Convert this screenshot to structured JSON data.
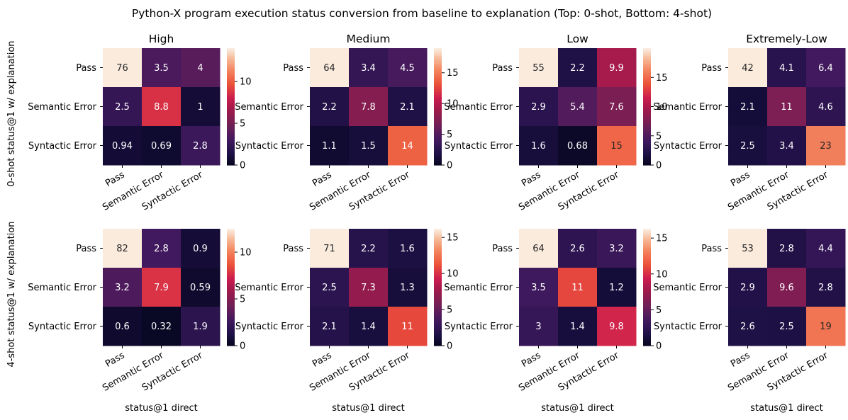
{
  "title": "Python-X program execution status conversion from baseline to explanation (Top: 0-shot, Bottom: 4-shot)",
  "chart_data": {
    "type": "heatmap",
    "colormap": "rocket",
    "categories": [
      "Pass",
      "Semantic Error",
      "Syntactic Error"
    ],
    "xlabel": "status@1 direct",
    "row_labels": [
      "0-shot status@1 w/ explanation",
      "4-shot status@1 w/ explanation"
    ],
    "panels": [
      {
        "title": "High",
        "row": 0,
        "values": [
          [
            76,
            3.5,
            4
          ],
          [
            2.5,
            8.8,
            1
          ],
          [
            0.94,
            0.69,
            2.8
          ]
        ],
        "labels": [
          [
            "76",
            "3.5",
            "4"
          ],
          [
            "2.5",
            "8.8",
            "1"
          ],
          [
            "0.94",
            "0.69",
            "2.8"
          ]
        ],
        "vmin": 0,
        "vmax": 14,
        "ticks": [
          0,
          5,
          10
        ]
      },
      {
        "title": "Medium",
        "row": 0,
        "values": [
          [
            64,
            3.4,
            4.5
          ],
          [
            2.2,
            7.8,
            2.1
          ],
          [
            1.1,
            1.5,
            14
          ]
        ],
        "labels": [
          [
            "64",
            "3.4",
            "4.5"
          ],
          [
            "2.2",
            "7.8",
            "2.1"
          ],
          [
            "1.1",
            "1.5",
            "14"
          ]
        ],
        "vmin": 0,
        "vmax": 19,
        "ticks": [
          0,
          5,
          10,
          15
        ]
      },
      {
        "title": "Low",
        "row": 0,
        "values": [
          [
            55,
            2.2,
            9.9
          ],
          [
            2.9,
            5.4,
            7.6
          ],
          [
            1.6,
            0.68,
            15
          ]
        ],
        "labels": [
          [
            "55",
            "2.2",
            "9.9"
          ],
          [
            "2.9",
            "5.4",
            "7.6"
          ],
          [
            "1.6",
            "0.68",
            "15"
          ]
        ],
        "vmin": 0,
        "vmax": 20,
        "ticks": [
          0,
          5,
          10,
          15
        ]
      },
      {
        "title": "Extremely-Low",
        "row": 0,
        "values": [
          [
            42,
            4.1,
            6.4
          ],
          [
            2.1,
            11,
            4.6
          ],
          [
            2.5,
            3.4,
            23
          ]
        ],
        "labels": [
          [
            "42",
            "4.1",
            "6.4"
          ],
          [
            "2.1",
            "11",
            "4.6"
          ],
          [
            "2.5",
            "3.4",
            "23"
          ]
        ],
        "vmin": 0,
        "vmax": 28.5,
        "ticks": [
          0,
          10,
          20
        ]
      },
      {
        "title": "",
        "row": 1,
        "values": [
          [
            82,
            2.8,
            0.9
          ],
          [
            3.2,
            7.9,
            0.59
          ],
          [
            0.6,
            0.32,
            1.9
          ]
        ],
        "labels": [
          [
            "82",
            "2.8",
            "0.9"
          ],
          [
            "3.2",
            "7.9",
            "0.59"
          ],
          [
            "0.6",
            "0.32",
            "1.9"
          ]
        ],
        "vmin": 0,
        "vmax": 12.5,
        "ticks": [
          0,
          5,
          10
        ]
      },
      {
        "title": "",
        "row": 1,
        "values": [
          [
            71,
            2.2,
            1.6
          ],
          [
            2.5,
            7.3,
            1.3
          ],
          [
            2.1,
            1.4,
            11
          ]
        ],
        "labels": [
          [
            "71",
            "2.2",
            "1.6"
          ],
          [
            "2.5",
            "7.3",
            "1.3"
          ],
          [
            "2.1",
            "1.4",
            "11"
          ]
        ],
        "vmin": 0,
        "vmax": 16.2,
        "ticks": [
          0,
          5,
          10,
          15
        ]
      },
      {
        "title": "",
        "row": 1,
        "values": [
          [
            64,
            2.6,
            3.2
          ],
          [
            3.5,
            11,
            1.2
          ],
          [
            3,
            1.4,
            9.8
          ]
        ],
        "labels": [
          [
            "64",
            "2.6",
            "3.2"
          ],
          [
            "3.5",
            "11",
            "1.2"
          ],
          [
            "3",
            "1.4",
            "9.8"
          ]
        ],
        "vmin": 0,
        "vmax": 16.3,
        "ticks": [
          0,
          5,
          10,
          15
        ]
      },
      {
        "title": "",
        "row": 1,
        "values": [
          [
            53,
            2.8,
            4.4
          ],
          [
            2.9,
            9.6,
            2.8
          ],
          [
            2.6,
            2.5,
            19
          ]
        ],
        "labels": [
          [
            "53",
            "2.8",
            "4.4"
          ],
          [
            "2.9",
            "9.6",
            "2.8"
          ],
          [
            "2.6",
            "2.5",
            "19"
          ]
        ],
        "vmin": 0,
        "vmax": 24.3,
        "ticks": [
          0,
          5,
          10,
          15,
          20
        ]
      }
    ]
  }
}
